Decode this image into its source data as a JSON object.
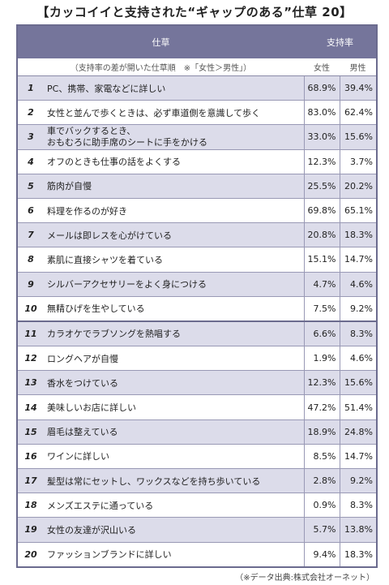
{
  "title": "【カッコイイと支持された“ギャップのある”仕草 20】",
  "header": {
    "col_item": "仕草",
    "col_support": "支持率"
  },
  "subheader": {
    "note": "（支持率の差が開いた仕草順　※「女性＞男性」）",
    "female": "女性",
    "male": "男性"
  },
  "rows": [
    {
      "rank": "1",
      "text": "PC、携帯、家電などに詳しい",
      "female": "68.9%",
      "male": "39.4%"
    },
    {
      "rank": "2",
      "text": "女性と並んで歩くときは、必ず車道側を意識して歩く",
      "female": "83.0%",
      "male": "62.4%"
    },
    {
      "rank": "3",
      "text": "車でバックするとき、\nおもむろに助手席のシートに手をかける",
      "female": "33.0%",
      "male": "15.6%"
    },
    {
      "rank": "4",
      "text": "オフのときも仕事の話をよくする",
      "female": "12.3%",
      "male": "3.7%"
    },
    {
      "rank": "5",
      "text": "筋肉が自慢",
      "female": "25.5%",
      "male": "20.2%"
    },
    {
      "rank": "6",
      "text": "料理を作るのが好き",
      "female": "69.8%",
      "male": "65.1%"
    },
    {
      "rank": "7",
      "text": "メールは即レスを心がけている",
      "female": "20.8%",
      "male": "18.3%"
    },
    {
      "rank": "8",
      "text": "素肌に直接シャツを着ている",
      "female": "15.1%",
      "male": "14.7%"
    },
    {
      "rank": "9",
      "text": "シルバーアクセサリーをよく身につける",
      "female": "4.7%",
      "male": "4.6%"
    },
    {
      "rank": "10",
      "text": "無精ひげを生やしている",
      "female": "7.5%",
      "male": "9.2%"
    },
    {
      "rank": "11",
      "text": "カラオケでラブソングを熱唱する",
      "female": "6.6%",
      "male": "8.3%"
    },
    {
      "rank": "12",
      "text": "ロングヘアが自慢",
      "female": "1.9%",
      "male": "4.6%"
    },
    {
      "rank": "13",
      "text": "香水をつけている",
      "female": "12.3%",
      "male": "15.6%"
    },
    {
      "rank": "14",
      "text": "美味しいお店に詳しい",
      "female": "47.2%",
      "male": "51.4%"
    },
    {
      "rank": "15",
      "text": "眉毛は整えている",
      "female": "18.9%",
      "male": "24.8%"
    },
    {
      "rank": "16",
      "text": "ワインに詳しい",
      "female": "8.5%",
      "male": "14.7%"
    },
    {
      "rank": "17",
      "text": "髪型は常にセットし、ワックスなどを持ち歩いている",
      "female": "2.8%",
      "male": "9.2%"
    },
    {
      "rank": "18",
      "text": "メンズエステに通っている",
      "female": "0.9%",
      "male": "8.3%"
    },
    {
      "rank": "19",
      "text": "女性の友達が沢山いる",
      "female": "5.7%",
      "male": "13.8%"
    },
    {
      "rank": "20",
      "text": "ファッションブランドに詳しい",
      "female": "9.4%",
      "male": "18.3%"
    }
  ],
  "source": "（※データ出典:株式会社オーネット）"
}
